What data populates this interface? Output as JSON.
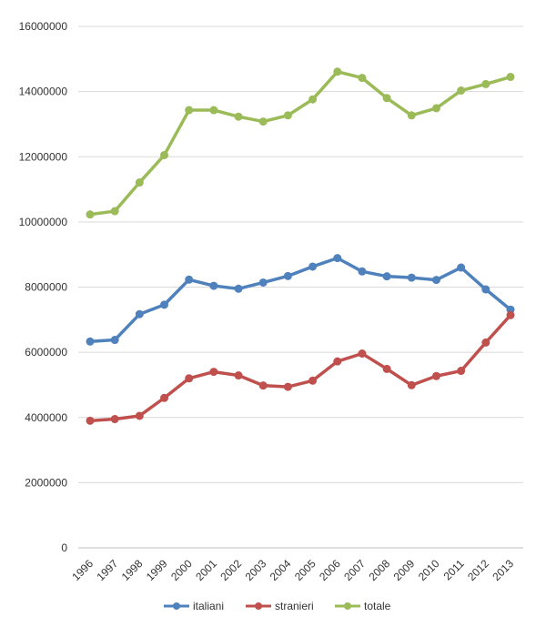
{
  "chart_data": {
    "type": "line",
    "title": "",
    "xlabel": "",
    "ylabel": "",
    "x": [
      "1996",
      "1997",
      "1998",
      "1999",
      "2000",
      "2001",
      "2002",
      "2003",
      "2004",
      "2005",
      "2006",
      "2007",
      "2008",
      "2009",
      "2010",
      "2011",
      "2012",
      "2013"
    ],
    "ylim": [
      0,
      16000000
    ],
    "yticks": [
      0,
      2000000,
      4000000,
      6000000,
      8000000,
      10000000,
      12000000,
      14000000,
      16000000
    ],
    "grid": true,
    "legend_position": "bottom",
    "series": [
      {
        "name": "italiani",
        "color": "#4f81bd",
        "values": [
          6330000,
          6380000,
          7170000,
          7460000,
          8230000,
          8040000,
          7950000,
          8140000,
          8340000,
          8630000,
          8890000,
          8480000,
          8330000,
          8290000,
          8220000,
          8600000,
          7930000,
          7310000
        ]
      },
      {
        "name": "stranieri",
        "color": "#c0504d",
        "values": [
          3900000,
          3950000,
          4050000,
          4600000,
          5200000,
          5400000,
          5290000,
          4980000,
          4940000,
          5130000,
          5720000,
          5960000,
          5490000,
          4990000,
          5270000,
          5430000,
          6300000,
          7140000
        ]
      },
      {
        "name": "totale",
        "color": "#9bbb59",
        "values": [
          10230000,
          10330000,
          11210000,
          12050000,
          13430000,
          13430000,
          13230000,
          13080000,
          13270000,
          13760000,
          14610000,
          14420000,
          13800000,
          13270000,
          13490000,
          14030000,
          14230000,
          14450000
        ]
      }
    ]
  }
}
